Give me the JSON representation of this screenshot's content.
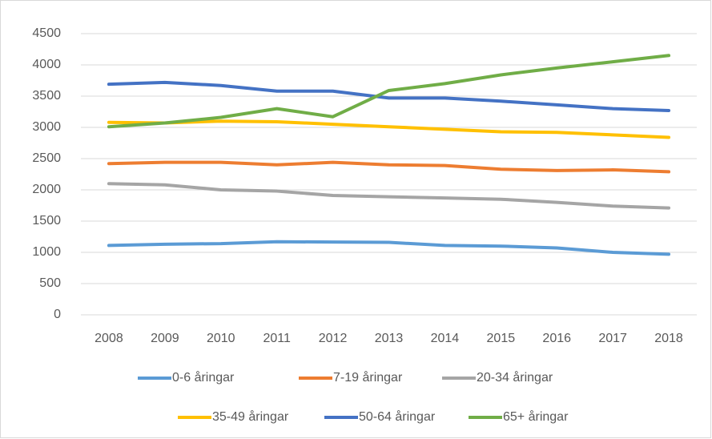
{
  "chart_data": {
    "type": "line",
    "categories": [
      "2008",
      "2009",
      "2010",
      "2011",
      "2012",
      "2013",
      "2014",
      "2015",
      "2016",
      "2017",
      "2018"
    ],
    "series": [
      {
        "name": "0-6 åringar",
        "color": "#5B9BD5",
        "values": [
          1110,
          1130,
          1140,
          1170,
          1165,
          1160,
          1110,
          1100,
          1070,
          1000,
          970
        ]
      },
      {
        "name": "7-19 åringar",
        "color": "#ED7D31",
        "values": [
          2420,
          2440,
          2440,
          2400,
          2440,
          2400,
          2390,
          2330,
          2310,
          2320,
          2290
        ]
      },
      {
        "name": "20-34 åringar",
        "color": "#A5A5A5",
        "values": [
          2100,
          2080,
          2000,
          1980,
          1910,
          1890,
          1870,
          1850,
          1800,
          1740,
          1710
        ]
      },
      {
        "name": "35-49 åringar",
        "color": "#FFC000",
        "values": [
          3080,
          3070,
          3100,
          3090,
          3050,
          3010,
          2970,
          2930,
          2920,
          2880,
          2840
        ]
      },
      {
        "name": "50-64 åringar",
        "color": "#4472C4",
        "values": [
          3690,
          3720,
          3670,
          3580,
          3580,
          3470,
          3470,
          3420,
          3360,
          3300,
          3270
        ]
      },
      {
        "name": "65+ åringar",
        "color": "#70AD47",
        "values": [
          3010,
          3070,
          3160,
          3300,
          3170,
          3590,
          3700,
          3840,
          3950,
          4050,
          4150
        ]
      }
    ],
    "ylim": [
      0,
      4500
    ],
    "yticks": [
      0,
      500,
      1000,
      1500,
      2000,
      2500,
      3000,
      3500,
      4000,
      4500
    ],
    "grid": true,
    "legend": "bottom"
  }
}
